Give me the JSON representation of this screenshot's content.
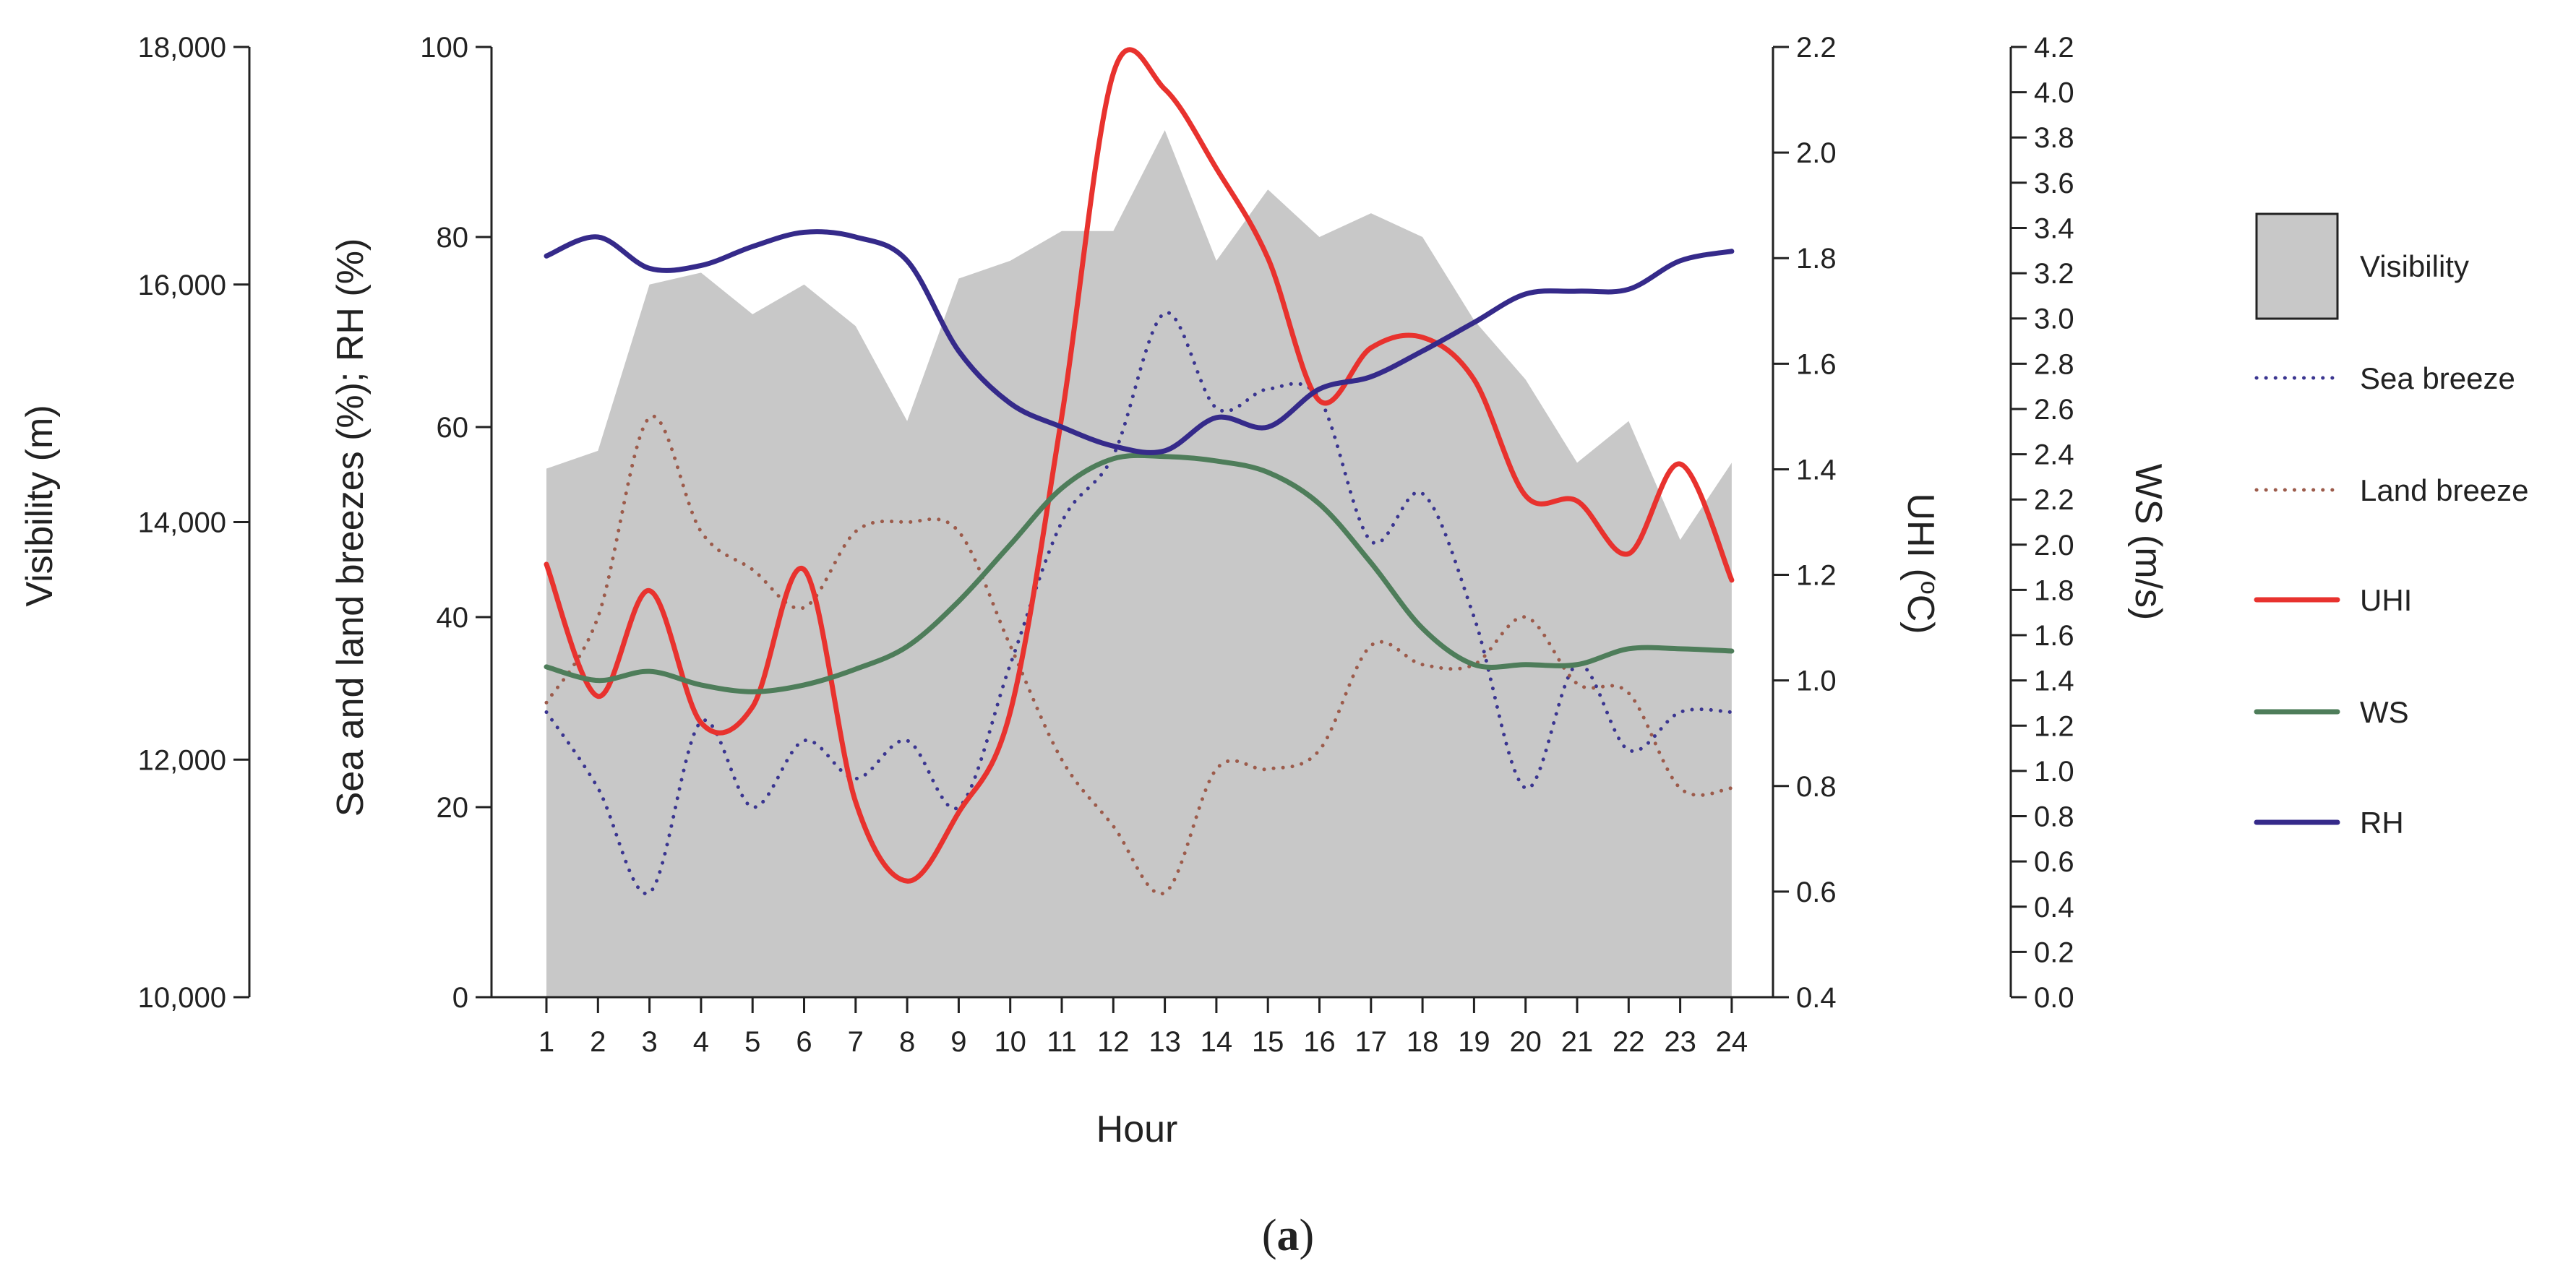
{
  "chart_data": {
    "type": "area+line",
    "x": [
      1,
      2,
      3,
      4,
      5,
      6,
      7,
      8,
      9,
      10,
      11,
      12,
      13,
      14,
      15,
      16,
      17,
      18,
      19,
      20,
      21,
      22,
      23,
      24
    ],
    "xlabel": "Hour",
    "caption": {
      "open": "(",
      "bold": "a",
      "close": ")"
    },
    "axes": {
      "visibility": {
        "label": "Visibility (m)",
        "range": [
          10000,
          18000
        ],
        "ticks": [
          "10,000",
          "12,000",
          "14,000",
          "16,000",
          "18,000"
        ],
        "tick_values": [
          10000,
          12000,
          14000,
          16000,
          18000
        ]
      },
      "percent": {
        "label": "Sea and land breezes (%); RH (%)",
        "range": [
          0,
          100
        ],
        "ticks": [
          "0",
          "20",
          "40",
          "60",
          "80",
          "100"
        ],
        "tick_values": [
          0,
          20,
          40,
          60,
          80,
          100
        ]
      },
      "uhi": {
        "label": "UHI (",
        "label_sup": "o",
        "label_end": "C)",
        "range": [
          0.4,
          2.2
        ],
        "ticks": [
          "0.4",
          "0.6",
          "0.8",
          "1.0",
          "1.2",
          "1.4",
          "1.6",
          "1.8",
          "2.0",
          "2.2"
        ],
        "tick_values": [
          0.4,
          0.6,
          0.8,
          1.0,
          1.2,
          1.4,
          1.6,
          1.8,
          2.0,
          2.2
        ]
      },
      "ws": {
        "label": "WS (m/s)",
        "range": [
          0,
          4.2
        ],
        "ticks": [
          "0.0",
          "0.2",
          "0.4",
          "0.6",
          "0.8",
          "1.0",
          "1.2",
          "1.4",
          "1.6",
          "1.8",
          "2.0",
          "2.2",
          "2.4",
          "2.6",
          "2.8",
          "3.0",
          "3.2",
          "3.4",
          "3.6",
          "3.8",
          "4.0",
          "4.2"
        ],
        "tick_values": [
          0,
          0.2,
          0.4,
          0.6,
          0.8,
          1.0,
          1.2,
          1.4,
          1.6,
          1.8,
          2.0,
          2.2,
          2.4,
          2.6,
          2.8,
          3.0,
          3.2,
          3.4,
          3.6,
          3.8,
          4.0,
          4.2
        ]
      }
    },
    "series": [
      {
        "name": "Visibility",
        "axis": "visibility",
        "style": "area",
        "color": "#c8c8c8",
        "values": [
          14450,
          14600,
          16000,
          16100,
          15750,
          16000,
          15650,
          14850,
          16050,
          16200,
          16450,
          16450,
          17300,
          16200,
          16800,
          16400,
          16600,
          16400,
          15700,
          15200,
          14500,
          14850,
          13850,
          14500
        ]
      },
      {
        "name": "Sea breeze",
        "axis": "percent",
        "style": "dotted",
        "color": "#3a3590",
        "values": [
          30,
          22,
          11,
          29,
          20,
          27,
          23,
          27,
          20,
          35,
          50,
          57,
          72,
          62,
          64,
          63,
          48,
          53,
          40,
          22,
          35,
          26,
          30,
          30
        ]
      },
      {
        "name": "Land breeze",
        "axis": "percent",
        "style": "dotted",
        "color": "#9c5b4b",
        "values": [
          31,
          40,
          61,
          49,
          45,
          41,
          49,
          50,
          49,
          37,
          25,
          18,
          11,
          24,
          24,
          26,
          37,
          35,
          35,
          40,
          33,
          32,
          22,
          22
        ]
      },
      {
        "name": "UHI",
        "axis": "uhi",
        "style": "solid",
        "color": "#e8322e",
        "values": [
          1.22,
          0.97,
          1.17,
          0.92,
          0.95,
          1.21,
          0.77,
          0.62,
          0.75,
          0.94,
          1.5,
          2.15,
          2.12,
          1.97,
          1.8,
          1.53,
          1.63,
          1.65,
          1.57,
          1.35,
          1.34,
          1.24,
          1.41,
          1.19
        ]
      },
      {
        "name": "WS",
        "axis": "ws",
        "style": "solid",
        "color": "#4e7d5a",
        "values": [
          1.46,
          1.4,
          1.44,
          1.38,
          1.35,
          1.38,
          1.45,
          1.55,
          1.75,
          2.0,
          2.25,
          2.38,
          2.39,
          2.37,
          2.32,
          2.18,
          1.92,
          1.63,
          1.47,
          1.47,
          1.47,
          1.54,
          1.54,
          1.53
        ]
      },
      {
        "name": "RH",
        "axis": "percent",
        "style": "solid",
        "color": "#352a8a",
        "values": [
          78,
          80,
          76.7,
          77,
          79,
          80.5,
          80,
          77.5,
          68,
          62.5,
          60,
          58,
          57.5,
          61,
          60,
          64,
          65.3,
          68,
          71,
          74,
          74.3,
          74.5,
          77.5,
          78.5
        ]
      }
    ],
    "legend": {
      "position": "right"
    }
  }
}
